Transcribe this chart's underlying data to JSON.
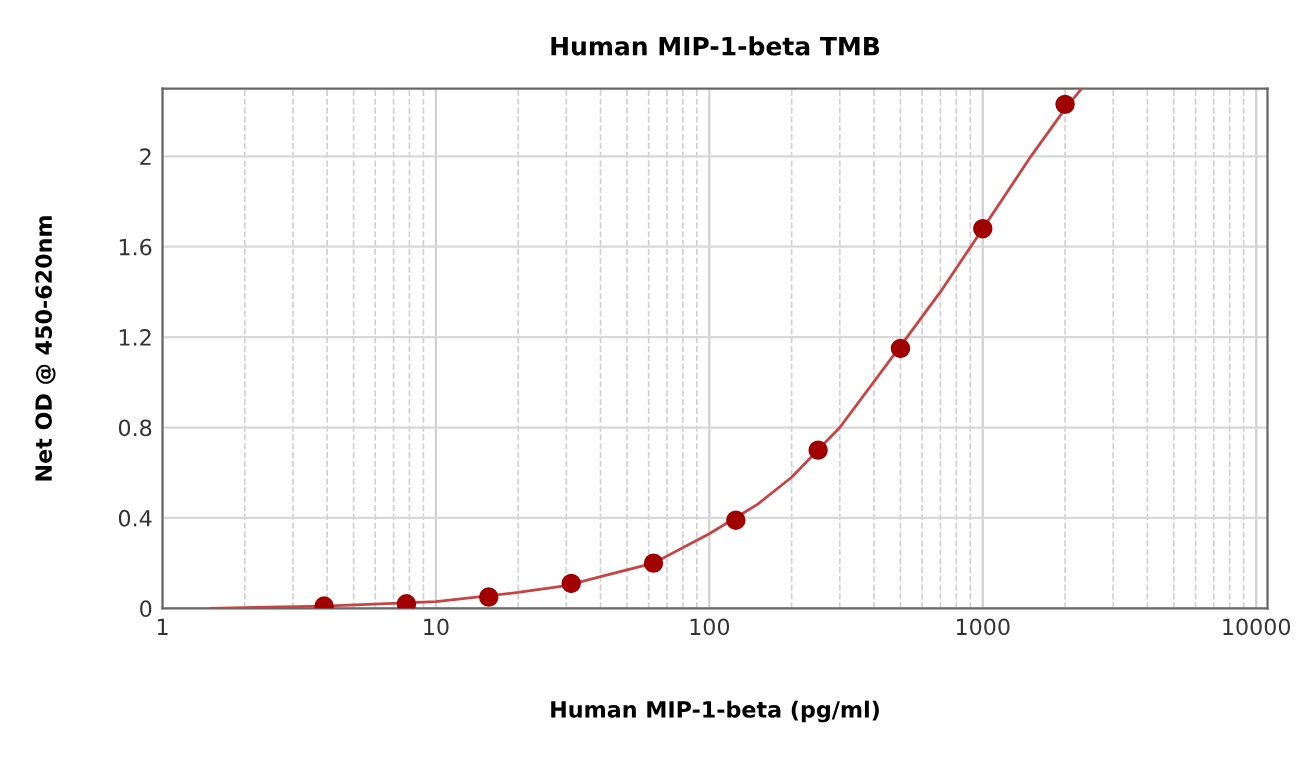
{
  "chart_data": {
    "type": "scatter",
    "title": "Human MIP-1-beta TMB",
    "xlabel": "Human MIP-1-beta (pg/ml)",
    "ylabel": "Net OD @ 450-620nm",
    "log": "x",
    "xlim": [
      1,
      11000
    ],
    "xticks": [
      1,
      10,
      100,
      1000,
      10000
    ],
    "ylim": [
      0,
      2.3
    ],
    "yticks": [
      0,
      0.4,
      0.8,
      1.2,
      1.6,
      2
    ],
    "grid": true,
    "series": [
      {
        "marker": "circle",
        "color": "#a00000",
        "x": [
          3.9,
          7.8,
          15.6,
          31.25,
          62.5,
          125,
          250,
          500,
          1000,
          2000
        ],
        "values": [
          0.01,
          0.02,
          0.05,
          0.11,
          0.2,
          0.39,
          0.7,
          1.15,
          1.68,
          2.23
        ]
      },
      {
        "type": "line",
        "marker": "none",
        "color": "#c84444",
        "x": [
          1.5,
          3.9,
          10,
          20,
          30,
          40,
          62.5,
          100,
          150,
          200,
          300,
          500,
          700,
          1000,
          1500,
          2000,
          2300
        ],
        "values": [
          0,
          0.01,
          0.03,
          0.07,
          0.1,
          0.14,
          0.2,
          0.33,
          0.46,
          0.58,
          0.8,
          1.16,
          1.4,
          1.68,
          2.0,
          2.21,
          2.3
        ]
      }
    ]
  }
}
